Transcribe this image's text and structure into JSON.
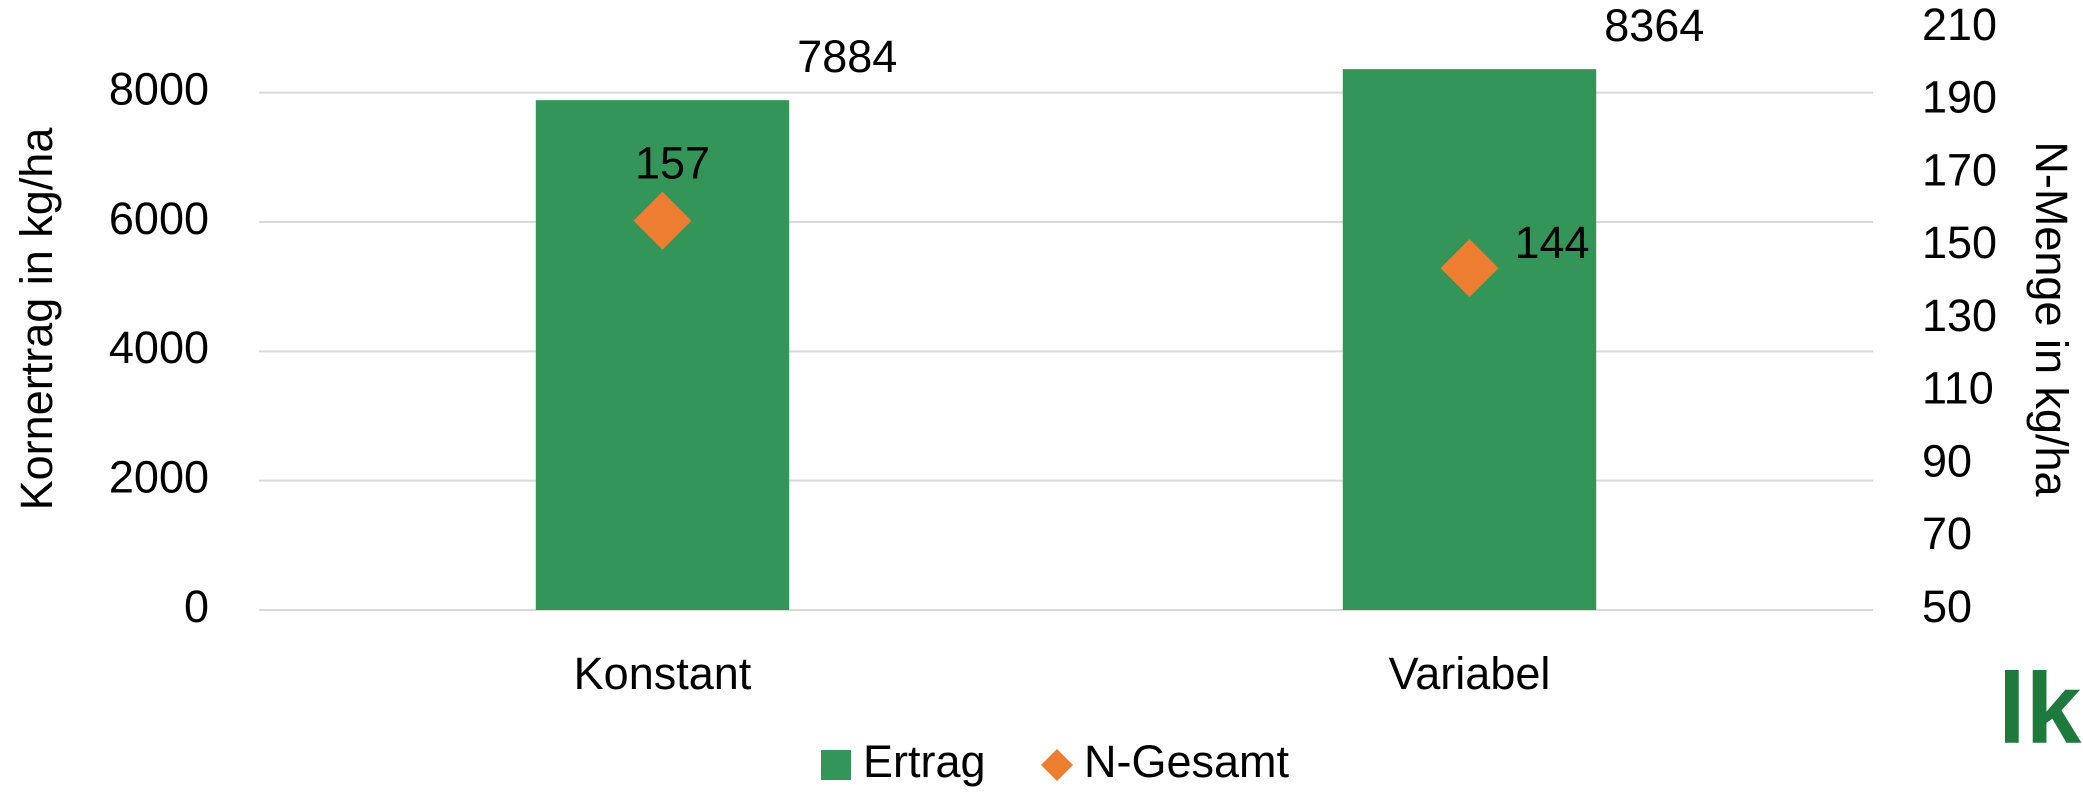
{
  "chart_data": {
    "type": "bar",
    "categories": [
      "Konstant",
      "Variabel"
    ],
    "series": [
      {
        "name": "Ertrag",
        "color": "#339558",
        "values": [
          7884,
          8364
        ]
      },
      {
        "name": "N-Gesamt",
        "color": "#ed7d31",
        "type": "scatter",
        "axis": "y2",
        "values": [
          157,
          144
        ]
      }
    ],
    "ylabel": "Kornertrag in kg/ha",
    "y2label": "N-Menge in kg/ha",
    "ylim": [
      0,
      9000
    ],
    "yticks": [
      0,
      2000,
      4000,
      6000,
      8000
    ],
    "y2lim": [
      50,
      210
    ],
    "y2ticks": [
      50,
      70,
      90,
      110,
      130,
      150,
      170,
      190,
      210
    ],
    "grid": true,
    "legend": "bottom",
    "logo": "lk"
  }
}
